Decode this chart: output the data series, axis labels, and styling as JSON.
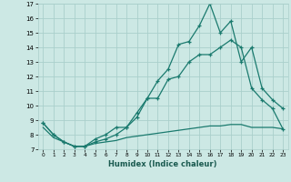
{
  "title": "",
  "xlabel": "Humidex (Indice chaleur)",
  "bg_color": "#cce8e4",
  "grid_color": "#aacfcb",
  "line_color": "#1a7a6e",
  "line1": {
    "x": [
      0,
      1,
      2,
      3,
      4,
      5,
      6,
      7,
      8,
      9,
      10,
      11,
      12,
      13,
      14,
      15,
      16,
      17,
      18,
      19,
      20,
      21,
      22,
      23
    ],
    "y": [
      8.8,
      8.0,
      7.5,
      7.2,
      7.2,
      7.5,
      7.7,
      8.0,
      8.5,
      9.2,
      10.5,
      11.7,
      12.5,
      14.2,
      14.4,
      15.5,
      17.0,
      15.0,
      15.8,
      13.0,
      14.0,
      11.2,
      10.4,
      9.8
    ]
  },
  "line2": {
    "x": [
      0,
      1,
      2,
      3,
      4,
      5,
      6,
      7,
      8,
      9,
      10,
      11,
      12,
      13,
      14,
      15,
      16,
      17,
      18,
      19,
      20,
      21,
      22,
      23
    ],
    "y": [
      8.8,
      8.0,
      7.5,
      7.2,
      7.2,
      7.7,
      8.0,
      8.5,
      8.5,
      9.5,
      10.5,
      10.5,
      11.8,
      12.0,
      13.0,
      13.5,
      13.5,
      14.0,
      14.5,
      14.0,
      11.2,
      10.4,
      9.8,
      8.4
    ]
  },
  "line3": {
    "x": [
      0,
      1,
      2,
      3,
      4,
      5,
      6,
      7,
      8,
      9,
      10,
      11,
      12,
      13,
      14,
      15,
      16,
      17,
      18,
      19,
      20,
      21,
      22,
      23
    ],
    "y": [
      8.5,
      7.8,
      7.5,
      7.2,
      7.2,
      7.4,
      7.5,
      7.6,
      7.8,
      7.9,
      8.0,
      8.1,
      8.2,
      8.3,
      8.4,
      8.5,
      8.6,
      8.6,
      8.7,
      8.7,
      8.5,
      8.5,
      8.5,
      8.4
    ]
  },
  "ylim": [
    7,
    17
  ],
  "xlim": [
    -0.5,
    23.5
  ],
  "yticks": [
    7,
    8,
    9,
    10,
    11,
    12,
    13,
    14,
    15,
    16,
    17
  ],
  "xticks": [
    0,
    1,
    2,
    3,
    4,
    5,
    6,
    7,
    8,
    9,
    10,
    11,
    12,
    13,
    14,
    15,
    16,
    17,
    18,
    19,
    20,
    21,
    22,
    23
  ]
}
